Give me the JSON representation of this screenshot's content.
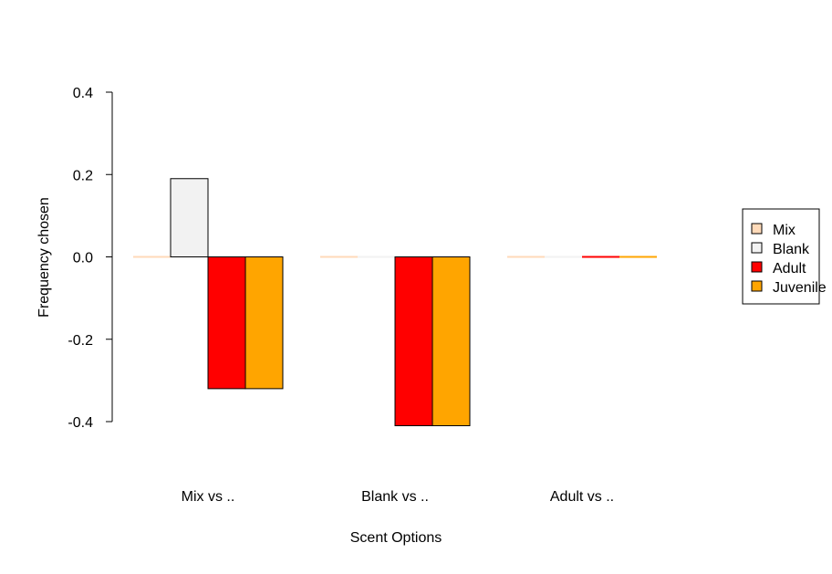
{
  "chart_data": {
    "type": "bar",
    "title": "",
    "xlabel": "Scent Options",
    "ylabel": "Frequency chosen",
    "ylim": [
      -0.4,
      0.4
    ],
    "yticks": [
      "-0.4",
      "-0.2",
      "0.0",
      "0.2",
      "0.4"
    ],
    "categories": [
      "Mix vs ..",
      "Blank vs ..",
      "Adult vs .."
    ],
    "series": [
      {
        "name": "Mix",
        "color": "#FFDAB9",
        "values": [
          0.0,
          0.0,
          0.0
        ]
      },
      {
        "name": "Blank",
        "color": "#F2F2F2",
        "values": [
          0.19,
          0.0,
          0.0
        ]
      },
      {
        "name": "Adult",
        "color": "#FF0000",
        "values": [
          -0.32,
          -0.41,
          0.0
        ]
      },
      {
        "name": "Juvenile",
        "color": "#FFA500",
        "values": [
          -0.32,
          -0.41,
          0.0
        ]
      }
    ],
    "legend_position": "right",
    "grid": false
  }
}
